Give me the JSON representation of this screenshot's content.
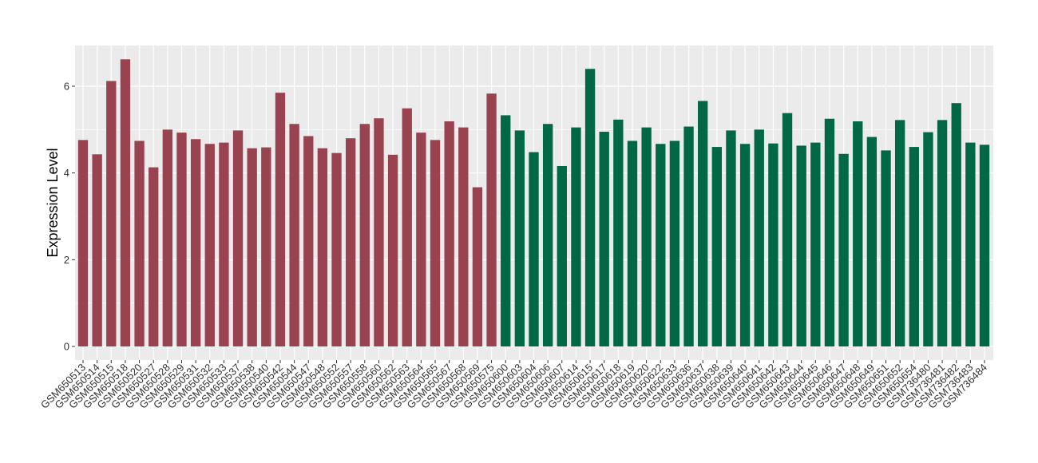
{
  "chart_data": {
    "type": "bar",
    "title": "",
    "xlabel": "",
    "ylabel": "Expression Level",
    "ylim": [
      0,
      6.95
    ],
    "yticks": [
      0,
      2,
      4,
      6
    ],
    "grid": true,
    "legend": "none",
    "colors": {
      "group_a": "#9a4350",
      "group_b": "#006845",
      "panel": "#ebebeb",
      "grid": "#ffffff"
    },
    "categories": [
      "GSM650513",
      "GSM650514",
      "GSM650515",
      "GSM650518",
      "GSM650520",
      "GSM650527",
      "GSM650528",
      "GSM650529",
      "GSM650531",
      "GSM650532",
      "GSM650533",
      "GSM650537",
      "GSM650538",
      "GSM650540",
      "GSM650542",
      "GSM650544",
      "GSM650547",
      "GSM650548",
      "GSM650552",
      "GSM650557",
      "GSM650558",
      "GSM650560",
      "GSM650562",
      "GSM650563",
      "GSM650564",
      "GSM650565",
      "GSM650567",
      "GSM650568",
      "GSM650569",
      "GSM650575",
      "GSM650600",
      "GSM650603",
      "GSM650604",
      "GSM650606",
      "GSM650607",
      "GSM650614",
      "GSM650615",
      "GSM650617",
      "GSM650618",
      "GSM650619",
      "GSM650620",
      "GSM650622",
      "GSM650633",
      "GSM650636",
      "GSM650637",
      "GSM650638",
      "GSM650639",
      "GSM650640",
      "GSM650641",
      "GSM650642",
      "GSM650643",
      "GSM650644",
      "GSM650645",
      "GSM650646",
      "GSM650647",
      "GSM650648",
      "GSM650649",
      "GSM650651",
      "GSM650652",
      "GSM650654",
      "GSM736480",
      "GSM736481",
      "GSM736482",
      "GSM736483",
      "GSM736484"
    ],
    "values": [
      4.76,
      4.43,
      6.12,
      6.62,
      4.74,
      4.13,
      5.0,
      4.93,
      4.78,
      4.67,
      4.7,
      4.98,
      4.57,
      4.59,
      5.85,
      5.13,
      4.85,
      4.57,
      4.46,
      4.8,
      5.13,
      5.26,
      4.42,
      5.49,
      4.93,
      4.76,
      5.19,
      5.05,
      3.67,
      5.83,
      5.33,
      4.98,
      4.48,
      5.13,
      4.16,
      5.05,
      6.4,
      4.95,
      5.23,
      4.74,
      5.05,
      4.67,
      4.74,
      5.07,
      5.66,
      4.6,
      4.98,
      4.67,
      5.0,
      4.68,
      5.38,
      4.63,
      4.7,
      5.25,
      4.44,
      5.19,
      4.83,
      4.52,
      5.22,
      4.6,
      4.94,
      5.22,
      5.61,
      4.7,
      4.65
    ],
    "groups": [
      "a",
      "a",
      "a",
      "a",
      "a",
      "a",
      "a",
      "a",
      "a",
      "a",
      "a",
      "a",
      "a",
      "a",
      "a",
      "a",
      "a",
      "a",
      "a",
      "a",
      "a",
      "a",
      "a",
      "a",
      "a",
      "a",
      "a",
      "a",
      "a",
      "a",
      "b",
      "b",
      "b",
      "b",
      "b",
      "b",
      "b",
      "b",
      "b",
      "b",
      "b",
      "b",
      "b",
      "b",
      "b",
      "b",
      "b",
      "b",
      "b",
      "b",
      "b",
      "b",
      "b",
      "b",
      "b",
      "b",
      "b",
      "b",
      "b",
      "b",
      "b",
      "b",
      "b",
      "b",
      "b"
    ]
  }
}
